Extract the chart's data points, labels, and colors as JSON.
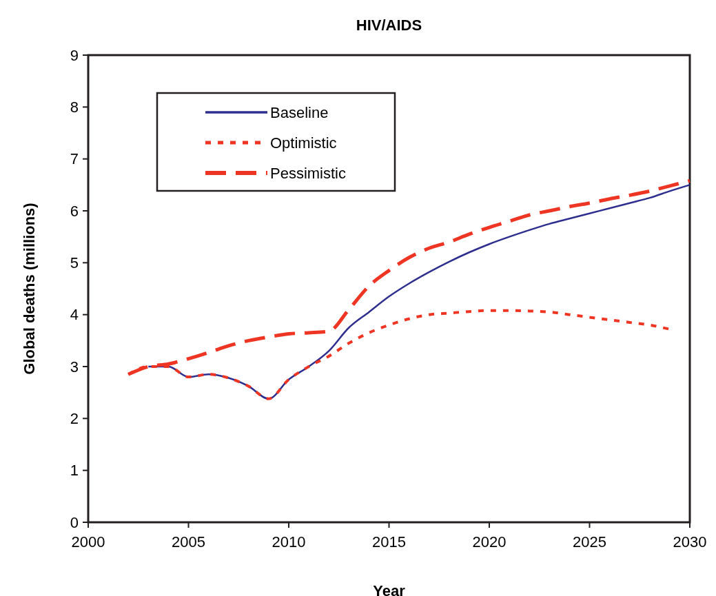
{
  "chart_data": {
    "type": "line",
    "title": "HIV/AIDS",
    "xlabel": "Year",
    "ylabel": "Global deaths (millions)",
    "xlim": [
      2000,
      2030
    ],
    "xticks": [
      2000,
      2005,
      2010,
      2015,
      2020,
      2025,
      2030
    ],
    "ylim": [
      0,
      9
    ],
    "yticks": [
      0,
      1,
      2,
      3,
      4,
      5,
      6,
      7,
      8,
      9
    ],
    "grid": false,
    "legend": "top left",
    "x": [
      2002,
      2003,
      2004,
      2005,
      2006,
      2007,
      2008,
      2009,
      2010,
      2011,
      2012,
      2013,
      2014,
      2015,
      2016,
      2017,
      2018,
      2019,
      2020,
      2021,
      2022,
      2023,
      2024,
      2025,
      2026,
      2027,
      2028,
      2029,
      2030
    ],
    "series": [
      {
        "name": "Baseline",
        "color": "#2e2e8f",
        "line_style": "solid",
        "values": [
          null,
          3.0,
          3.0,
          2.8,
          2.85,
          2.78,
          2.62,
          2.38,
          2.75,
          3.0,
          3.3,
          3.75,
          4.05,
          4.35,
          4.6,
          4.82,
          5.02,
          5.2,
          5.36,
          5.5,
          5.63,
          5.75,
          5.85,
          5.95,
          6.05,
          6.15,
          6.25,
          6.38,
          6.5
        ]
      },
      {
        "name": "Optimistic",
        "color": "#ee3524",
        "line_style": "dotted",
        "values": [
          2.85,
          3.0,
          3.0,
          2.8,
          2.85,
          2.78,
          2.62,
          2.38,
          2.75,
          3.0,
          3.2,
          3.45,
          3.65,
          3.8,
          3.92,
          4.0,
          4.03,
          4.06,
          4.08,
          4.08,
          4.07,
          4.05,
          4.0,
          3.95,
          3.9,
          3.85,
          3.8,
          3.72,
          null
        ]
      },
      {
        "name": "Pessimistic",
        "color": "#ee3524",
        "line_style": "dashed",
        "values": [
          2.85,
          3.0,
          3.05,
          3.15,
          3.27,
          3.4,
          3.5,
          3.57,
          3.63,
          3.65,
          3.68,
          4.1,
          4.55,
          4.85,
          5.1,
          5.28,
          5.4,
          5.55,
          5.68,
          5.8,
          5.92,
          6.0,
          6.08,
          6.15,
          6.23,
          6.3,
          6.38,
          6.48,
          6.58
        ]
      }
    ]
  }
}
